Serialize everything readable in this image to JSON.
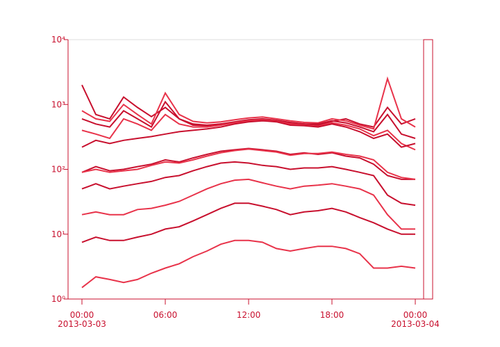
{
  "chart_data": {
    "type": "line",
    "log_y": true,
    "xlim": [
      "2013-03-02T23:00",
      "2013-03-04T00:36"
    ],
    "ylim": [
      1,
      10000
    ],
    "xticks": [
      {
        "value": "2013-03-03T00:00",
        "label": "00:00"
      },
      {
        "value": "2013-03-03T06:00",
        "label": "06:00"
      },
      {
        "value": "2013-03-03T12:00",
        "label": "12:00"
      },
      {
        "value": "2013-03-03T18:00",
        "label": "18:00"
      },
      {
        "value": "2013-03-04T00:00",
        "label": "00:00"
      }
    ],
    "xtick_dates": [
      "2013-03-03",
      null,
      null,
      null,
      "2013-03-04"
    ],
    "yticks": [
      {
        "value": 1,
        "label": "10⁰"
      },
      {
        "value": 10,
        "label": "10¹"
      },
      {
        "value": 100,
        "label": "10²"
      },
      {
        "value": 1000,
        "label": "10³"
      },
      {
        "value": 10000,
        "label": "10⁴"
      }
    ],
    "x": [
      "2013-03-03T00:00",
      "2013-03-03T01:00",
      "2013-03-03T02:00",
      "2013-03-03T03:00",
      "2013-03-03T04:00",
      "2013-03-03T05:00",
      "2013-03-03T06:00",
      "2013-03-03T07:00",
      "2013-03-03T08:00",
      "2013-03-03T09:00",
      "2013-03-03T10:00",
      "2013-03-03T11:00",
      "2013-03-03T12:00",
      "2013-03-03T13:00",
      "2013-03-03T14:00",
      "2013-03-03T15:00",
      "2013-03-03T16:00",
      "2013-03-03T17:00",
      "2013-03-03T18:00",
      "2013-03-03T19:00",
      "2013-03-03T20:00",
      "2013-03-03T21:00",
      "2013-03-03T22:00",
      "2013-03-03T23:00",
      "2013-03-04T00:00"
    ],
    "series": [
      {
        "color": "#c8102e",
        "values": [
          2000,
          700,
          600,
          1300,
          900,
          650,
          900,
          600,
          500,
          480,
          500,
          520,
          560,
          580,
          560,
          520,
          500,
          480,
          550,
          600,
          500,
          450,
          900,
          500,
          600
        ]
      },
      {
        "color": "#e8334a",
        "values": [
          800,
          600,
          550,
          1000,
          700,
          500,
          1500,
          700,
          550,
          520,
          540,
          580,
          620,
          640,
          600,
          560,
          530,
          520,
          600,
          560,
          480,
          420,
          2500,
          600,
          450
        ]
      },
      {
        "color": "#c8102e",
        "values": [
          600,
          500,
          450,
          800,
          600,
          450,
          1100,
          600,
          480,
          470,
          500,
          540,
          580,
          600,
          570,
          530,
          500,
          500,
          560,
          520,
          450,
          380,
          700,
          350,
          300
        ]
      },
      {
        "color": "#e8334a",
        "values": [
          400,
          350,
          300,
          600,
          500,
          400,
          700,
          500,
          450,
          450,
          480,
          520,
          560,
          580,
          550,
          500,
          480,
          460,
          520,
          480,
          420,
          330,
          400,
          250,
          200
        ]
      },
      {
        "color": "#c8102e",
        "values": [
          220,
          280,
          250,
          280,
          300,
          320,
          350,
          380,
          400,
          420,
          450,
          500,
          540,
          560,
          540,
          480,
          470,
          450,
          500,
          450,
          380,
          300,
          350,
          220,
          250
        ]
      },
      {
        "color": "#c8102e",
        "values": [
          90,
          110,
          95,
          100,
          110,
          120,
          140,
          130,
          150,
          170,
          190,
          200,
          210,
          200,
          190,
          170,
          180,
          170,
          180,
          160,
          150,
          120,
          80,
          70,
          70
        ]
      },
      {
        "color": "#e8334a",
        "values": [
          90,
          100,
          90,
          95,
          100,
          115,
          130,
          125,
          140,
          160,
          180,
          195,
          205,
          195,
          185,
          165,
          175,
          175,
          185,
          170,
          160,
          140,
          90,
          75,
          70
        ]
      },
      {
        "color": "#c8102e",
        "values": [
          50,
          60,
          50,
          55,
          60,
          65,
          75,
          80,
          95,
          110,
          125,
          130,
          125,
          115,
          110,
          100,
          105,
          105,
          110,
          100,
          90,
          80,
          40,
          30,
          28
        ]
      },
      {
        "color": "#e8334a",
        "values": [
          20,
          22,
          20,
          20,
          24,
          25,
          28,
          32,
          40,
          50,
          60,
          68,
          70,
          62,
          55,
          50,
          55,
          57,
          60,
          55,
          50,
          40,
          20,
          12,
          12
        ]
      },
      {
        "color": "#c8102e",
        "values": [
          7.5,
          9,
          8,
          8,
          9,
          10,
          12,
          13,
          16,
          20,
          25,
          30,
          30,
          27,
          24,
          20,
          22,
          23,
          25,
          22,
          18,
          15,
          12,
          10,
          10
        ]
      },
      {
        "color": "#e8334a",
        "values": [
          1.5,
          2.2,
          2,
          1.8,
          2,
          2.5,
          3,
          3.5,
          4.5,
          5.5,
          7,
          8,
          8,
          7.5,
          6,
          5.5,
          6,
          6.5,
          6.5,
          6,
          5,
          3,
          3,
          3.2,
          3
        ]
      }
    ]
  }
}
